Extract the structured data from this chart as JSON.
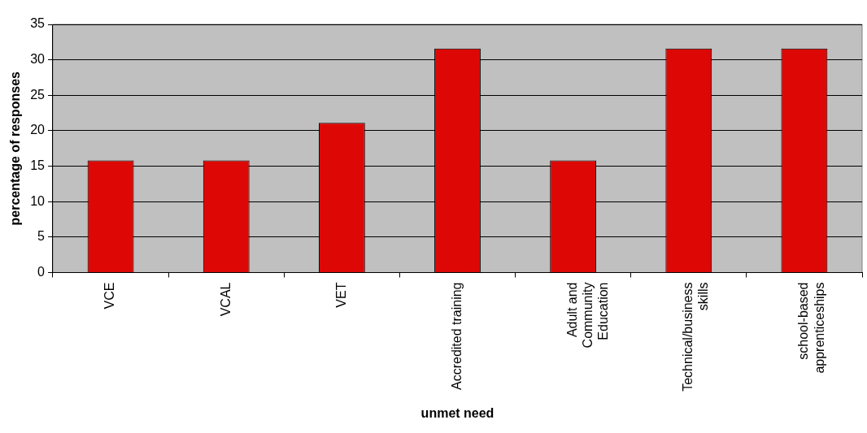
{
  "chart_data": {
    "type": "bar",
    "xlabel": "unmet need",
    "ylabel": "percentage of responses",
    "categories": [
      "VCE",
      "VCAL",
      "VET",
      "Accredited training",
      "Adult and Community Education",
      "Technical/business skills",
      "school-based apprenticeships"
    ],
    "values": [
      15.8,
      15.8,
      21.1,
      31.6,
      15.8,
      31.6,
      31.6
    ],
    "color": "#dd0806",
    "ylim": [
      0,
      35
    ],
    "yticks": [
      0,
      5,
      10,
      15,
      20,
      25,
      30,
      35
    ],
    "grid": "y",
    "legend": false
  }
}
